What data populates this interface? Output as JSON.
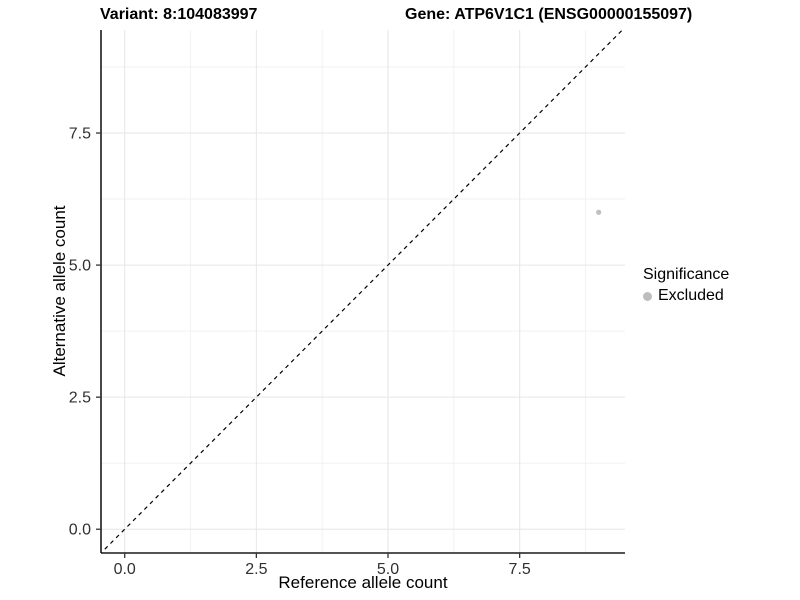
{
  "header": {
    "variant_title": "Variant: 8:104083997",
    "gene_title": "Gene: ATP6V1C1 (ENSG00000155097)"
  },
  "chart_data": {
    "type": "scatter",
    "xlabel": "Reference allele count",
    "ylabel": "Alternative allele count",
    "xlim": [
      -0.45,
      9.5
    ],
    "ylim": [
      -0.45,
      9.45
    ],
    "x_ticks": [
      0.0,
      2.5,
      5.0,
      7.5
    ],
    "y_ticks": [
      0.0,
      2.5,
      5.0,
      7.5
    ],
    "x_tick_labels": [
      "0.0",
      "2.5",
      "5.0",
      "7.5"
    ],
    "y_tick_labels": [
      "0.0",
      "2.5",
      "5.0",
      "7.5"
    ],
    "minor_ticks": [
      1.25,
      3.75,
      6.25,
      8.75
    ],
    "grid": "major+minor",
    "points": [
      {
        "x": 9,
        "y": 6,
        "series": "Excluded"
      }
    ],
    "reference_line": {
      "kind": "identity-diagonal",
      "style": "dashed",
      "slope": 1,
      "intercept": 0
    },
    "legend": {
      "position": "right",
      "title": "Significance",
      "items": [
        {
          "label": "Excluded",
          "color": "#bdbdbd"
        }
      ]
    },
    "colors": {
      "point": "#c0c0c0",
      "grid_major": "#e6e6e6",
      "grid_minor": "#f2f2f2",
      "axis_line": "#1a1a1a",
      "tick_mark": "#333333",
      "tick_label": "#303030",
      "reference_line": "#000000",
      "background": "#ffffff"
    }
  }
}
